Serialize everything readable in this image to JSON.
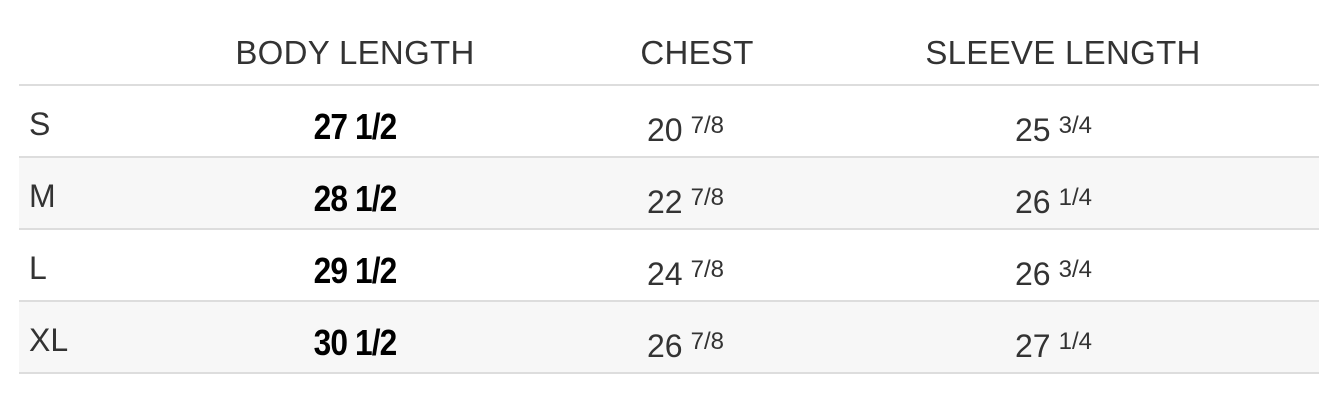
{
  "headers": [
    "",
    "BODY LENGTH",
    "CHEST",
    "SLEEVE LENGTH"
  ],
  "rows": [
    {
      "size": "S",
      "body_length": "27 1/2",
      "chest_whole": "20",
      "chest_frac": "7/8",
      "sleeve_whole": "25",
      "sleeve_frac": "3/4"
    },
    {
      "size": "M",
      "body_length": "28 1/2",
      "chest_whole": "22",
      "chest_frac": "7/8",
      "sleeve_whole": "26",
      "sleeve_frac": "1/4"
    },
    {
      "size": "L",
      "body_length": "29 1/2",
      "chest_whole": "24",
      "chest_frac": "7/8",
      "sleeve_whole": "26",
      "sleeve_frac": "3/4"
    },
    {
      "size": "XL",
      "body_length": "30 1/2",
      "chest_whole": "26",
      "chest_frac": "7/8",
      "sleeve_whole": "27",
      "sleeve_frac": "1/4"
    }
  ],
  "colors": {
    "text": "#333333",
    "body_length_text": "#000000",
    "stripe": "#f7f7f7",
    "border": "#dddddd"
  }
}
